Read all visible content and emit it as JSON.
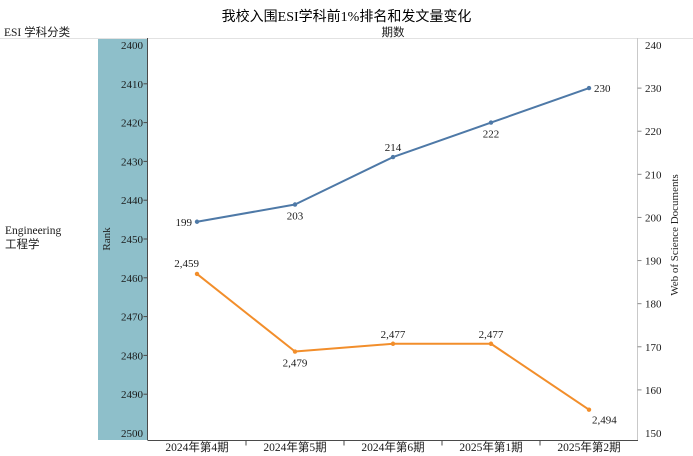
{
  "title": "我校入围ESI学科前1%排名和发文量变化",
  "header": {
    "esi_category_label": "ESI 学科分类",
    "period_label": "期数"
  },
  "subject_row": {
    "name_en": "Engineering",
    "name_zh": "工程学"
  },
  "colors": {
    "rank_band": "#8ebfca",
    "documents_line": "#4e79a7",
    "rank_line": "#f28e2b",
    "axis_dark": "#4a4a4a",
    "axis_light": "#c9c9c9",
    "divider": "#e2e2e2",
    "text": "#1a1a1a"
  },
  "chart_data": {
    "type": "line",
    "title": "我校入围ESI学科前1%排名和发文量变化",
    "categories": [
      "2024年第4期",
      "2024年第5期",
      "2024年第6期",
      "2025年第1期",
      "2025年第2期"
    ],
    "series": [
      {
        "name": "Web of Science Documents",
        "axis": "right",
        "color": "#4e79a7",
        "values": [
          199,
          203,
          214,
          222,
          230
        ],
        "labels": [
          "199",
          "203",
          "214",
          "222",
          "230"
        ],
        "label_pos": [
          "left",
          "below",
          "above",
          "below",
          "right"
        ]
      },
      {
        "name": "Rank",
        "axis": "left",
        "color": "#f28e2b",
        "values": [
          2459,
          2479,
          2477,
          2477,
          2494
        ],
        "labels": [
          "2,459",
          "2,479",
          "2,477",
          "2,477",
          "2,494"
        ],
        "label_pos": [
          "above-left",
          "below",
          "above",
          "above",
          "below-right"
        ]
      }
    ],
    "left_axis": {
      "label": "Rank",
      "min": 2400,
      "max": 2500,
      "inverted": true,
      "ticks": [
        2400,
        2410,
        2420,
        2430,
        2440,
        2450,
        2460,
        2470,
        2480,
        2490,
        2500
      ]
    },
    "right_axis": {
      "label": "Web of Science Documents",
      "min": 150,
      "max": 240,
      "ticks": [
        240,
        230,
        220,
        210,
        200,
        190,
        180,
        170,
        160,
        150
      ]
    },
    "grid": false,
    "legend": "none"
  }
}
